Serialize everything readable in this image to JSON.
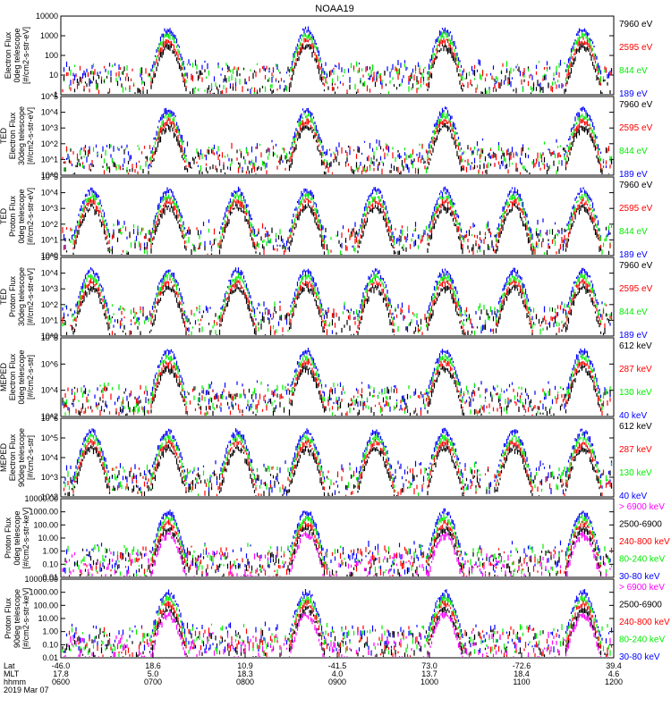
{
  "title": "NOAA19",
  "colors": {
    "black": "#000000",
    "red": "#ff0000",
    "green": "#00ee00",
    "blue": "#0000ff",
    "magenta": "#ff00ff"
  },
  "footer": {
    "row_labels": [
      "Lat",
      "MLT",
      "hhmm"
    ],
    "date": "2019 Mar 07",
    "ticks": [
      {
        "lat": "-46.0",
        "mlt": "17.8",
        "hhmm": "0600"
      },
      {
        "lat": "18.6",
        "mlt": "5.0",
        "hhmm": "0700"
      },
      {
        "lat": "10.9",
        "mlt": "18.3",
        "hhmm": "0800"
      },
      {
        "lat": "-41.5",
        "mlt": "4.0",
        "hhmm": "0900"
      },
      {
        "lat": "73.0",
        "mlt": "13.7",
        "hhmm": "1000"
      },
      {
        "lat": "-72.6",
        "mlt": "18.4",
        "hhmm": "1100"
      },
      {
        "lat": "39.4",
        "mlt": "4.6",
        "hhmm": "1200"
      }
    ]
  },
  "chart_data": [
    {
      "type": "scatter",
      "ylabel": [
        "Electron Flux",
        "0deg telescope",
        "[#/cm2-s-str-eV]"
      ],
      "yscale": "log",
      "ylim": [
        1,
        10000
      ],
      "ytick_labels": [
        "1",
        "10",
        "100",
        "1000",
        "10000"
      ],
      "legend": [
        {
          "label": "7960 eV",
          "color": "#000000"
        },
        {
          "label": "2595 eV",
          "color": "#ff0000"
        },
        {
          "label": "844 eV",
          "color": "#00ee00"
        },
        {
          "label": "189 eV",
          "color": "#0000ff"
        }
      ]
    },
    {
      "type": "scatter",
      "ylabel": [
        "TED",
        "Electron Flux",
        "30deg telescope",
        "[#/cm2-s-str-eV]"
      ],
      "yscale": "log",
      "ylim": [
        1,
        100000
      ],
      "ytick_labels": [
        "10^0",
        "10^1",
        "10^2",
        "10^3",
        "10^4",
        "10^5"
      ],
      "legend": [
        {
          "label": "7960 eV",
          "color": "#000000"
        },
        {
          "label": "2595 eV",
          "color": "#ff0000"
        },
        {
          "label": "844 eV",
          "color": "#00ee00"
        },
        {
          "label": "189 eV",
          "color": "#0000ff"
        }
      ]
    },
    {
      "type": "scatter",
      "ylabel": [
        "TED",
        "Proton Flux",
        "0deg telescope",
        "[#/cm2-s-str-eV]"
      ],
      "yscale": "log",
      "ylim": [
        1,
        100000
      ],
      "ytick_labels": [
        "10^0",
        "10^1",
        "10^2",
        "10^3",
        "10^4",
        "10^5"
      ],
      "legend": [
        {
          "label": "7960 eV",
          "color": "#000000"
        },
        {
          "label": "2595 eV",
          "color": "#ff0000"
        },
        {
          "label": "844 eV",
          "color": "#00ee00"
        },
        {
          "label": "189 eV",
          "color": "#0000ff"
        }
      ]
    },
    {
      "type": "scatter",
      "ylabel": [
        "TED",
        "Proton Flux",
        "30deg telescope",
        "[#/cm2-s-str-eV]"
      ],
      "yscale": "log",
      "ylim": [
        1,
        100000
      ],
      "ytick_labels": [
        "10^0",
        "10^1",
        "10^2",
        "10^3",
        "10^4",
        "10^5"
      ],
      "legend": [
        {
          "label": "7960 eV",
          "color": "#000000"
        },
        {
          "label": "2595 eV",
          "color": "#ff0000"
        },
        {
          "label": "844 eV",
          "color": "#00ee00"
        },
        {
          "label": "189 eV",
          "color": "#0000ff"
        }
      ]
    },
    {
      "type": "scatter",
      "ylabel": [
        "MEPED",
        "Electron Flux",
        "0deg telescope",
        "[#/cm2-s-str]"
      ],
      "yscale": "log",
      "ylim": [
        100,
        1000000000
      ],
      "ytick_labels": [
        "10^2",
        "10^4",
        "10^6",
        "10^8"
      ],
      "legend": [
        {
          "label": "612 keV",
          "color": "#000000"
        },
        {
          "label": "287 keV",
          "color": "#ff0000"
        },
        {
          "label": "130 keV",
          "color": "#00ee00"
        },
        {
          "label": "40 keV",
          "color": "#0000ff"
        }
      ]
    },
    {
      "type": "scatter",
      "ylabel": [
        "MEPED",
        "Electron Flux",
        "90deg telescope",
        "[#/cm2-s-str]"
      ],
      "yscale": "log",
      "ylim": [
        100,
        1000000
      ],
      "ytick_labels": [
        "10^2",
        "10^3",
        "10^4",
        "10^5",
        "10^6"
      ],
      "legend": [
        {
          "label": "612 keV",
          "color": "#000000"
        },
        {
          "label": "287 keV",
          "color": "#ff0000"
        },
        {
          "label": "130 keV",
          "color": "#00ee00"
        },
        {
          "label": "40 keV",
          "color": "#0000ff"
        }
      ]
    },
    {
      "type": "scatter",
      "ylabel": [
        "Proton Flux",
        "0deg telescope",
        "[#/cm2-s-str-keV]"
      ],
      "yscale": "log",
      "ylim": [
        0.01,
        10000
      ],
      "ytick_labels": [
        "0.01",
        "0.10",
        "1.00",
        "10.00",
        "100.00",
        "1000.00",
        "10000.00"
      ],
      "legend": [
        {
          "label": "> 6900 keV",
          "color": "#ff00ff"
        },
        {
          "label": "2500-6900",
          "color": "#000000"
        },
        {
          "label": "240-800 keV",
          "color": "#ff0000"
        },
        {
          "label": "80-240 keV",
          "color": "#00ee00"
        },
        {
          "label": "30-80 keV",
          "color": "#0000ff"
        }
      ]
    },
    {
      "type": "scatter",
      "ylabel": [
        "Proton Flux",
        "90deg telescope",
        "[#/cm2-s-str-keV]"
      ],
      "yscale": "log",
      "ylim": [
        0.01,
        10000
      ],
      "ytick_labels": [
        "0.01",
        "0.10",
        "1.00",
        "10.00",
        "100.00",
        "1000.00",
        "10000.00"
      ],
      "legend": [
        {
          "label": "> 6900 keV",
          "color": "#ff00ff"
        },
        {
          "label": "2500-6900",
          "color": "#000000"
        },
        {
          "label": "240-800 keV",
          "color": "#ff0000"
        },
        {
          "label": "80-240 keV",
          "color": "#00ee00"
        },
        {
          "label": "30-80 keV",
          "color": "#0000ff"
        }
      ]
    }
  ]
}
